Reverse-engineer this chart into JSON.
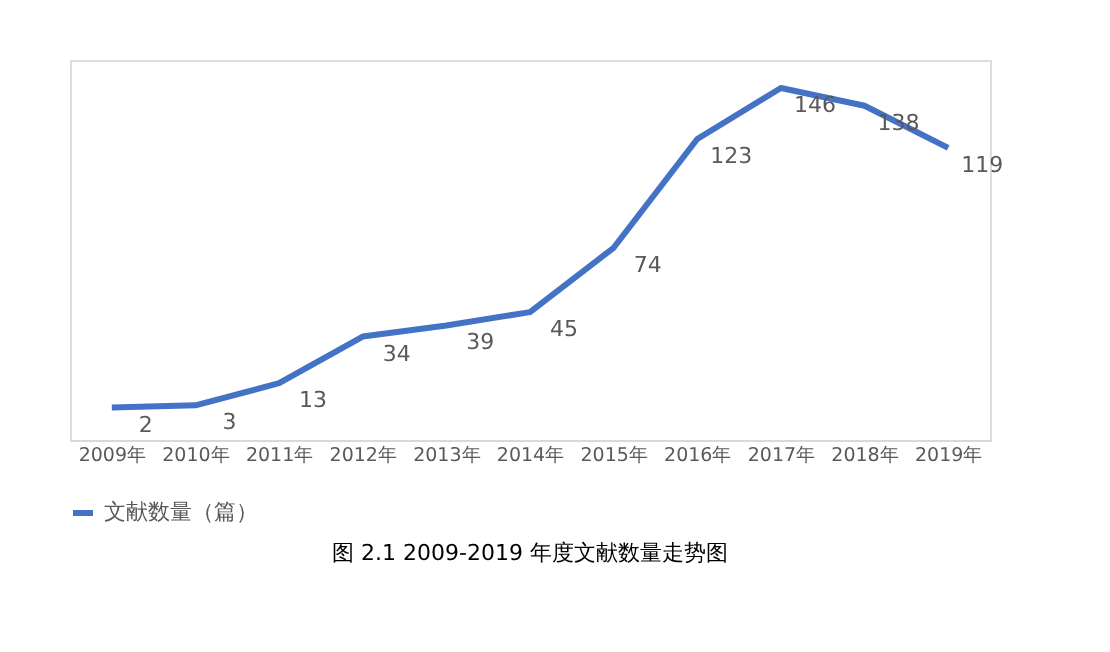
{
  "chart_data": {
    "type": "line",
    "categories": [
      "2009年",
      "2010年",
      "2011年",
      "2012年",
      "2013年",
      "2014年",
      "2015年",
      "2016年",
      "2017年",
      "2018年",
      "2019年"
    ],
    "series": [
      {
        "name": "文献数量（篇）",
        "color": "#4472c4",
        "values": [
          2,
          3,
          13,
          34,
          39,
          45,
          74,
          123,
          146,
          138,
          119
        ]
      }
    ],
    "data_labels": true,
    "legend": "bottom",
    "grid": false,
    "marker": "none",
    "line_style": "solid",
    "tick_labels": "x",
    "annotations": [
      "图 2.1 2009-2019 年度文献数量走势图"
    ]
  }
}
